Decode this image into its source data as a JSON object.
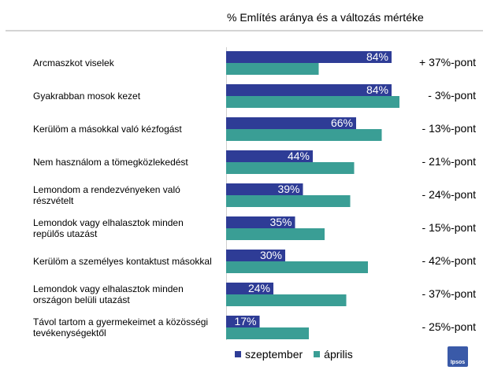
{
  "chart_data": {
    "type": "bar",
    "title": "% Említés aránya és a változás mértéke",
    "categories": [
      "Arcmaszkot viselek",
      "Gyakrabban mosok kezet",
      "Kerülöm a másokkal való kézfogást",
      "Nem használom a tömegközlekedést",
      "Lemondom a rendezvényeken való részvételt",
      "Lemondok vagy elhalasztok minden repülős utazást",
      "Kerülöm a személyes kontaktust másokkal",
      "Lemondok vagy elhalasztok minden országon belüli utazást",
      "Távol tartom a gyermekeimet a közösségi tevékenységektől"
    ],
    "series": [
      {
        "name": "szeptember",
        "color": "#2e3c96",
        "values": [
          84,
          84,
          66,
          44,
          39,
          35,
          30,
          24,
          17
        ],
        "labels": [
          "84%",
          "84%",
          "66%",
          "44%",
          "39%",
          "35%",
          "30%",
          "24%",
          "17%"
        ]
      },
      {
        "name": "április",
        "color": "#3a9e95",
        "values": [
          47,
          88,
          79,
          65,
          63,
          50,
          72,
          61,
          42
        ]
      }
    ],
    "changes": [
      "+ 37%-pont",
      "- 3%-pont",
      "- 13%-pont",
      "- 21%-pont",
      "- 24%-pont",
      "- 15%-pont",
      "- 42%-pont",
      "- 37%-pont",
      "- 25%-pont"
    ],
    "xlim": [
      0,
      100
    ],
    "legend_position": "bottom"
  },
  "logo": "Ipsos"
}
